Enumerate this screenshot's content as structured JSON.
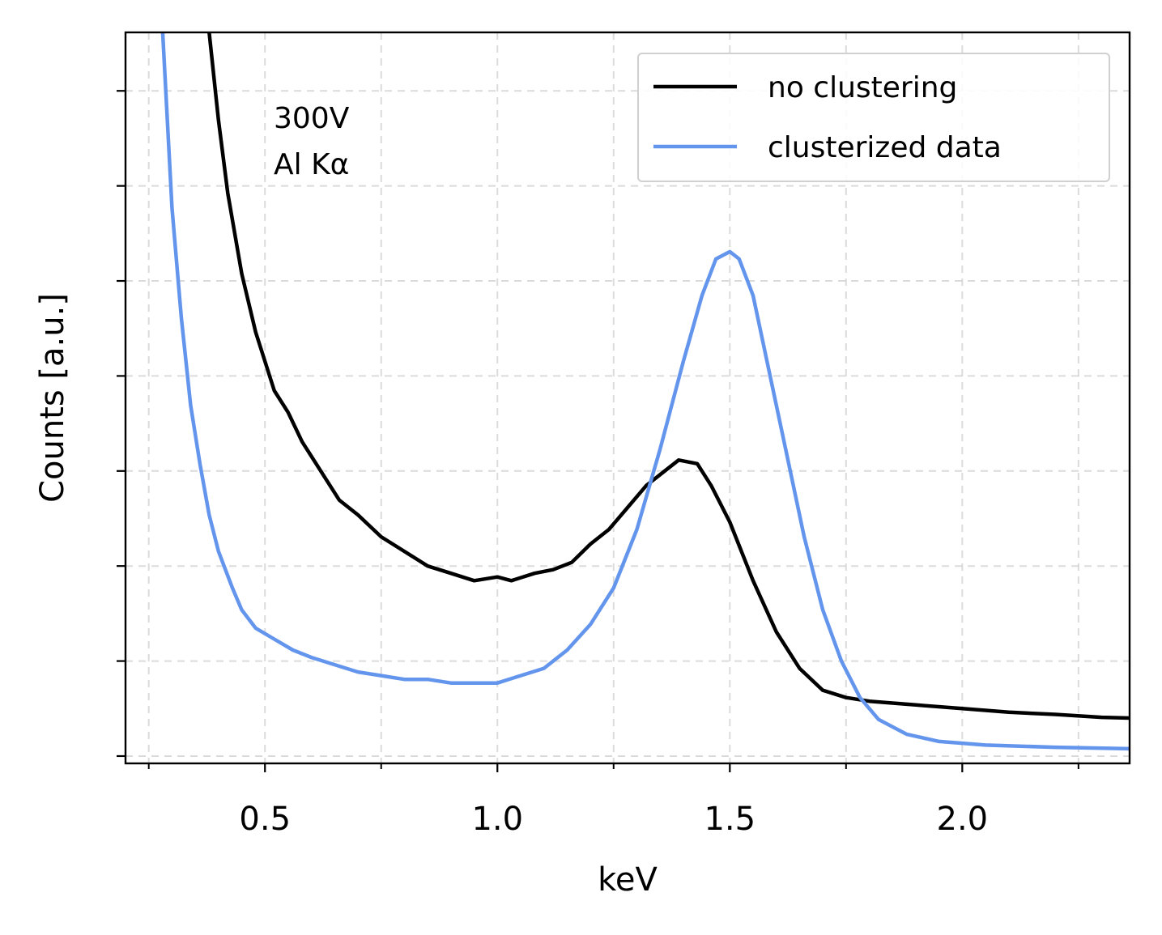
{
  "chart_data": {
    "type": "line",
    "xlabel": "keV",
    "ylabel": "Counts [a.u.]",
    "xlim": [
      0.2,
      2.36
    ],
    "ylim": [
      0,
      1
    ],
    "x_ticks": [
      0.5,
      1.0,
      1.5,
      2.0
    ],
    "x_tick_labels": [
      "0.5",
      "1.0",
      "1.5",
      "2.0"
    ],
    "x_minor_ticks": [
      0.25,
      0.75,
      1.25,
      1.75,
      2.25
    ],
    "y_ticks": [
      0.01,
      0.14,
      0.27,
      0.4,
      0.53,
      0.66,
      0.79,
      0.92
    ],
    "y_tick_labels": [],
    "grid": true,
    "legend_position": "top-right",
    "annotation": [
      "300V",
      "Al Kα"
    ],
    "series": [
      {
        "name": "no clustering",
        "color": "#000000",
        "x": [
          0.38,
          0.4,
          0.42,
          0.45,
          0.48,
          0.52,
          0.55,
          0.58,
          0.62,
          0.66,
          0.7,
          0.75,
          0.8,
          0.85,
          0.9,
          0.95,
          1.0,
          1.03,
          1.08,
          1.12,
          1.16,
          1.2,
          1.24,
          1.28,
          1.32,
          1.36,
          1.39,
          1.43,
          1.46,
          1.5,
          1.55,
          1.6,
          1.65,
          1.7,
          1.75,
          1.8,
          1.9,
          2.0,
          2.1,
          2.2,
          2.3,
          2.36
        ],
        "values": [
          1.0,
          0.88,
          0.78,
          0.67,
          0.59,
          0.51,
          0.48,
          0.44,
          0.4,
          0.36,
          0.34,
          0.31,
          0.29,
          0.27,
          0.26,
          0.25,
          0.255,
          0.25,
          0.26,
          0.265,
          0.275,
          0.3,
          0.32,
          0.35,
          0.38,
          0.4,
          0.415,
          0.41,
          0.38,
          0.33,
          0.25,
          0.18,
          0.13,
          0.1,
          0.09,
          0.085,
          0.08,
          0.075,
          0.07,
          0.067,
          0.063,
          0.062
        ]
      },
      {
        "name": "clusterized data",
        "color": "#6495ed",
        "x": [
          0.28,
          0.3,
          0.32,
          0.34,
          0.36,
          0.38,
          0.4,
          0.43,
          0.45,
          0.48,
          0.52,
          0.56,
          0.6,
          0.65,
          0.7,
          0.75,
          0.8,
          0.85,
          0.9,
          0.95,
          1.0,
          1.05,
          1.1,
          1.15,
          1.2,
          1.25,
          1.3,
          1.35,
          1.4,
          1.44,
          1.47,
          1.5,
          1.52,
          1.55,
          1.58,
          1.62,
          1.66,
          1.7,
          1.74,
          1.78,
          1.82,
          1.88,
          1.95,
          2.05,
          2.2,
          2.36
        ],
        "values": [
          1.0,
          0.76,
          0.61,
          0.49,
          0.41,
          0.34,
          0.29,
          0.24,
          0.21,
          0.185,
          0.17,
          0.155,
          0.145,
          0.135,
          0.125,
          0.12,
          0.115,
          0.115,
          0.11,
          0.11,
          0.11,
          0.12,
          0.13,
          0.155,
          0.19,
          0.24,
          0.32,
          0.43,
          0.55,
          0.64,
          0.69,
          0.7,
          0.69,
          0.64,
          0.55,
          0.43,
          0.31,
          0.21,
          0.14,
          0.09,
          0.06,
          0.04,
          0.03,
          0.025,
          0.022,
          0.02
        ]
      }
    ]
  }
}
